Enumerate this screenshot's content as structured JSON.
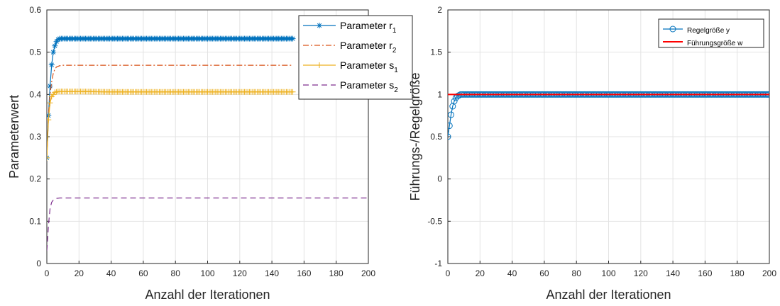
{
  "chart_data": [
    {
      "type": "line",
      "xlabel": "Anzahl der Iterationen",
      "ylabel": "Parameterwert",
      "xlim": [
        0,
        200
      ],
      "ylim": [
        0,
        0.6
      ],
      "xticks": [
        "0",
        "20",
        "40",
        "60",
        "80",
        "100",
        "120",
        "140",
        "160",
        "180",
        "200"
      ],
      "yticks": [
        "0",
        "0.1",
        "0.2",
        "0.3",
        "0.4",
        "0.5",
        "0.6"
      ],
      "grid": true,
      "legend_position": "top-right",
      "series": [
        {
          "name": "Parameter r",
          "subscript": "1",
          "color": "#0072BD",
          "style": "solid",
          "marker": "asterisk",
          "x": [
            0,
            1,
            2,
            3,
            4,
            5,
            6,
            7,
            8,
            10,
            20,
            40,
            60,
            80,
            100,
            120,
            140,
            153
          ],
          "y": [
            0.25,
            0.35,
            0.42,
            0.47,
            0.5,
            0.515,
            0.525,
            0.53,
            0.532,
            0.532,
            0.532,
            0.532,
            0.532,
            0.532,
            0.532,
            0.532,
            0.532,
            0.532
          ]
        },
        {
          "name": "Parameter r",
          "subscript": "2",
          "color": "#D95319",
          "style": "dashdot",
          "marker": "none",
          "x": [
            0,
            1,
            2,
            3,
            4,
            5,
            6,
            8,
            10,
            20,
            60,
            100,
            153
          ],
          "y": [
            0.25,
            0.35,
            0.4,
            0.43,
            0.45,
            0.46,
            0.465,
            0.468,
            0.469,
            0.469,
            0.469,
            0.469,
            0.469
          ]
        },
        {
          "name": "Parameter s",
          "subscript": "1",
          "color": "#EDB120",
          "style": "solid",
          "marker": "plus",
          "x": [
            0,
            1,
            2,
            3,
            4,
            5,
            6,
            7,
            8,
            10,
            20,
            40,
            60,
            80,
            100,
            120,
            140,
            153
          ],
          "y": [
            0.25,
            0.34,
            0.38,
            0.395,
            0.4,
            0.405,
            0.406,
            0.407,
            0.407,
            0.407,
            0.407,
            0.406,
            0.406,
            0.406,
            0.406,
            0.406,
            0.406,
            0.406
          ]
        },
        {
          "name": "Parameter s",
          "subscript": "2",
          "color": "#7E2F8E",
          "style": "dashed",
          "marker": "none",
          "x": [
            0,
            1,
            2,
            3,
            4,
            5,
            6,
            8,
            10,
            20,
            60,
            100,
            140,
            200
          ],
          "y": [
            0.03,
            0.09,
            0.13,
            0.145,
            0.15,
            0.153,
            0.154,
            0.155,
            0.155,
            0.155,
            0.155,
            0.155,
            0.155,
            0.155
          ]
        }
      ]
    },
    {
      "type": "line",
      "xlabel": "Anzahl der Iterationen",
      "ylabel": "Führungs-/Regelgröße",
      "xlim": [
        0,
        200
      ],
      "ylim": [
        -1,
        2
      ],
      "xticks": [
        "0",
        "20",
        "40",
        "60",
        "80",
        "100",
        "120",
        "140",
        "160",
        "180",
        "200"
      ],
      "yticks": [
        "-1",
        "-0.5",
        "0",
        "0.5",
        "1",
        "1.5",
        "2"
      ],
      "grid": true,
      "legend_position": "top-right",
      "series": [
        {
          "name": "Regelgröße y",
          "color": "#0072BD",
          "style": "solid",
          "marker": "circle",
          "x": [
            0,
            1,
            2,
            3,
            4,
            5,
            6,
            7,
            8,
            9,
            10,
            20,
            60,
            100,
            140,
            200
          ],
          "y": [
            0.5,
            0.63,
            0.76,
            0.86,
            0.92,
            0.96,
            0.98,
            0.99,
            1.0,
            1.0,
            1.0,
            1.0,
            1.0,
            1.0,
            1.0,
            1.0
          ]
        },
        {
          "name": "Führungsgröße w",
          "color": "#FF0000",
          "style": "solid",
          "marker": "none",
          "x": [
            0,
            200
          ],
          "y": [
            1.0,
            1.0
          ]
        }
      ]
    }
  ]
}
